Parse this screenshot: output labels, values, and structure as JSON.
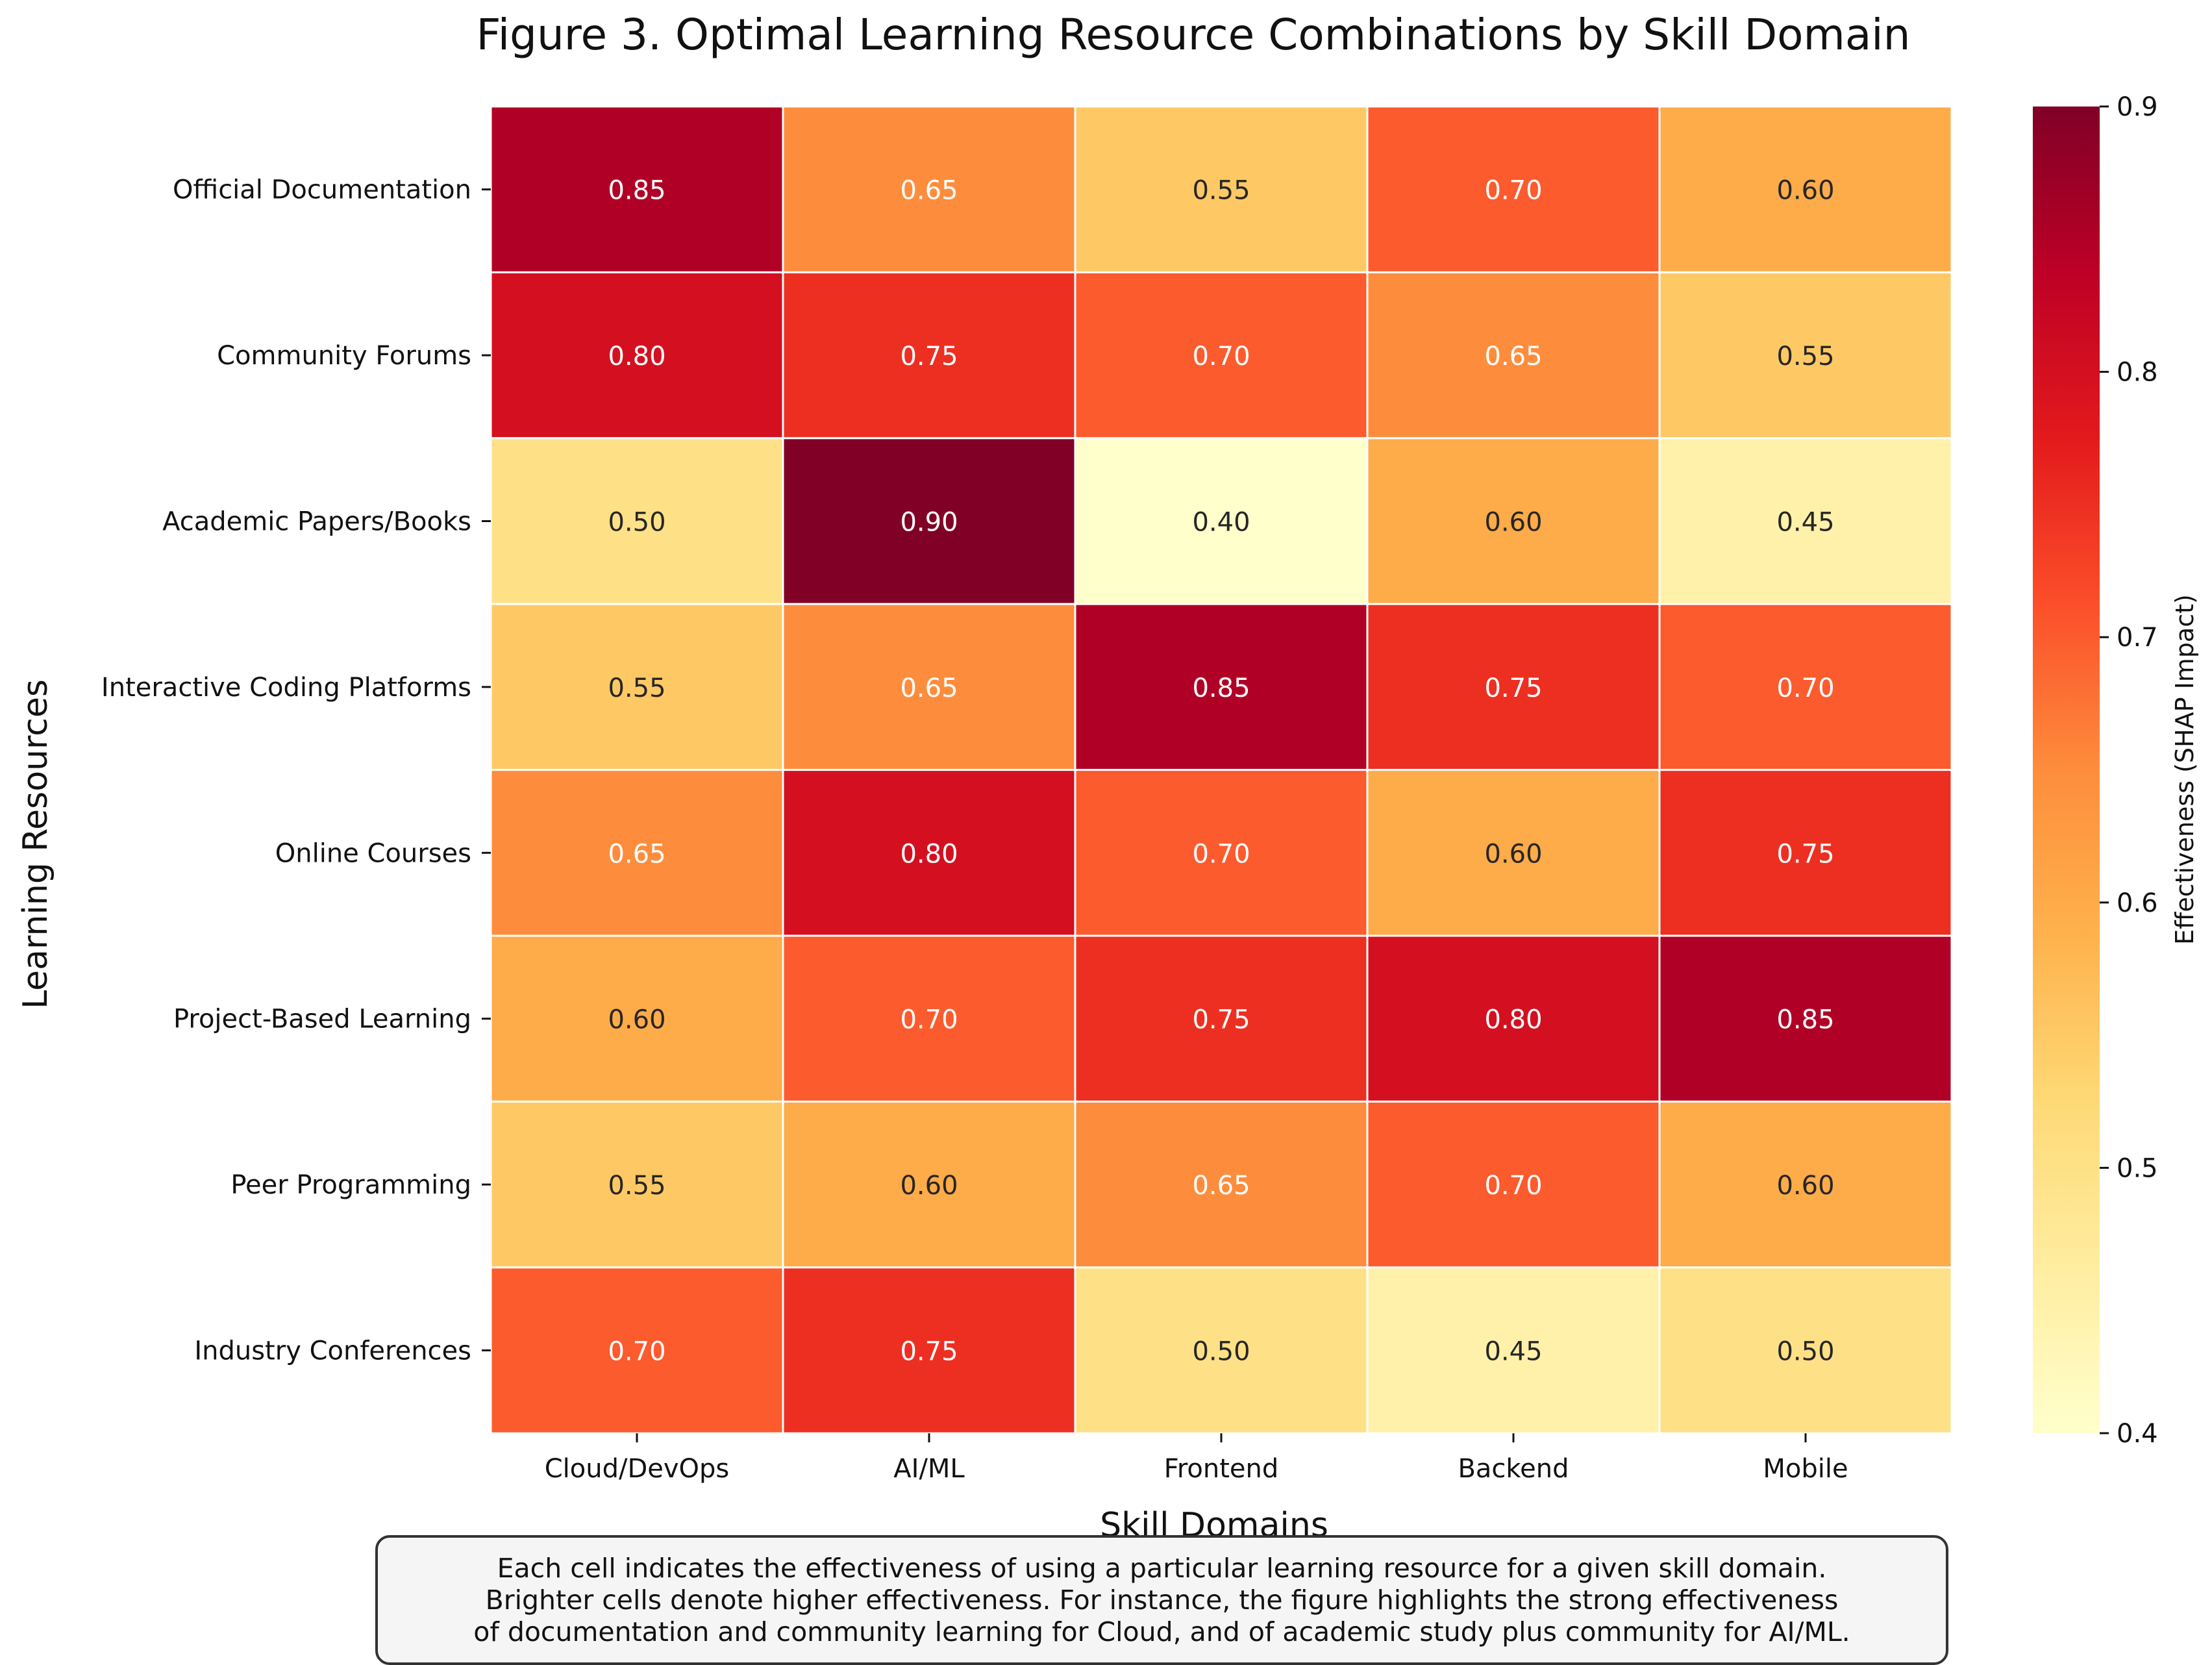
{
  "chart_data": {
    "type": "heatmap",
    "title": "Figure 3. Optimal Learning Resource Combinations by Skill Domain",
    "xlabel": "Skill Domains",
    "ylabel": "Learning Resources",
    "x_categories": [
      "Cloud/DevOps",
      "AI/ML",
      "Frontend",
      "Backend",
      "Mobile"
    ],
    "y_categories": [
      "Official Documentation",
      "Community Forums",
      "Academic Papers/Books",
      "Interactive Coding Platforms",
      "Online Courses",
      "Project-Based Learning",
      "Peer Programming",
      "Industry Conferences"
    ],
    "values": [
      [
        0.85,
        0.65,
        0.55,
        0.7,
        0.6
      ],
      [
        0.8,
        0.75,
        0.7,
        0.65,
        0.55
      ],
      [
        0.5,
        0.9,
        0.4,
        0.6,
        0.45
      ],
      [
        0.55,
        0.65,
        0.85,
        0.75,
        0.7
      ],
      [
        0.65,
        0.8,
        0.7,
        0.6,
        0.75
      ],
      [
        0.6,
        0.7,
        0.75,
        0.8,
        0.85
      ],
      [
        0.55,
        0.6,
        0.65,
        0.7,
        0.6
      ],
      [
        0.7,
        0.75,
        0.5,
        0.45,
        0.5
      ]
    ],
    "value_format": "0.00",
    "colormap": "YlOrRd",
    "colorbar": {
      "label": "Effectiveness (SHAP Impact)",
      "range": [
        0.4,
        0.9
      ],
      "ticks": [
        "0.4",
        "0.5",
        "0.6",
        "0.7",
        "0.8",
        "0.9"
      ]
    },
    "annotation_colors": {
      "dark_text": "#262626",
      "light_text": "#ffffff"
    },
    "cell_border_color": "#ffffff"
  },
  "caption": {
    "lines": [
      "Each cell indicates the effectiveness of using a particular learning resource for a given skill domain.",
      "Brighter cells denote higher effectiveness. For instance, the figure highlights the strong effectiveness",
      "of documentation and community learning for Cloud, and of academic study plus community for AI/ML."
    ]
  }
}
